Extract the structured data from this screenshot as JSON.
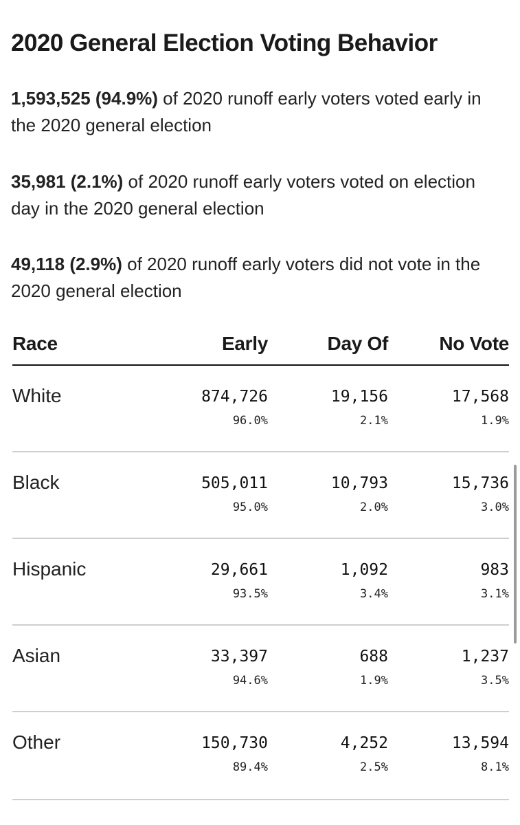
{
  "title": "2020 General Election Voting Behavior",
  "stats": [
    {
      "bold": "1,593,525 (94.9%)",
      "text": " of 2020 runoff early voters voted early in the 2020 general election"
    },
    {
      "bold": "35,981 (2.1%)",
      "text": " of 2020 runoff early voters voted on election day in the 2020 general election"
    },
    {
      "bold": "49,118 (2.9%)",
      "text": " of 2020 runoff early voters did not vote in the 2020 general election"
    }
  ],
  "table": {
    "headers": {
      "race": "Race",
      "early": "Early",
      "day_of": "Day Of",
      "no_vote": "No Vote"
    },
    "rows": [
      {
        "race": "White",
        "early": "874,726",
        "early_pct": "96.0%",
        "day_of": "19,156",
        "day_of_pct": "2.1%",
        "no_vote": "17,568",
        "no_vote_pct": "1.9%"
      },
      {
        "race": "Black",
        "early": "505,011",
        "early_pct": "95.0%",
        "day_of": "10,793",
        "day_of_pct": "2.0%",
        "no_vote": "15,736",
        "no_vote_pct": "3.0%"
      },
      {
        "race": "Hispanic",
        "early": "29,661",
        "early_pct": "93.5%",
        "day_of": "1,092",
        "day_of_pct": "3.4%",
        "no_vote": "983",
        "no_vote_pct": "3.1%"
      },
      {
        "race": "Asian",
        "early": "33,397",
        "early_pct": "94.6%",
        "day_of": "688",
        "day_of_pct": "1.9%",
        "no_vote": "1,237",
        "no_vote_pct": "3.5%"
      },
      {
        "race": "Other",
        "early": "150,730",
        "early_pct": "89.4%",
        "day_of": "4,252",
        "day_of_pct": "2.5%",
        "no_vote": "13,594",
        "no_vote_pct": "8.1%"
      }
    ]
  }
}
